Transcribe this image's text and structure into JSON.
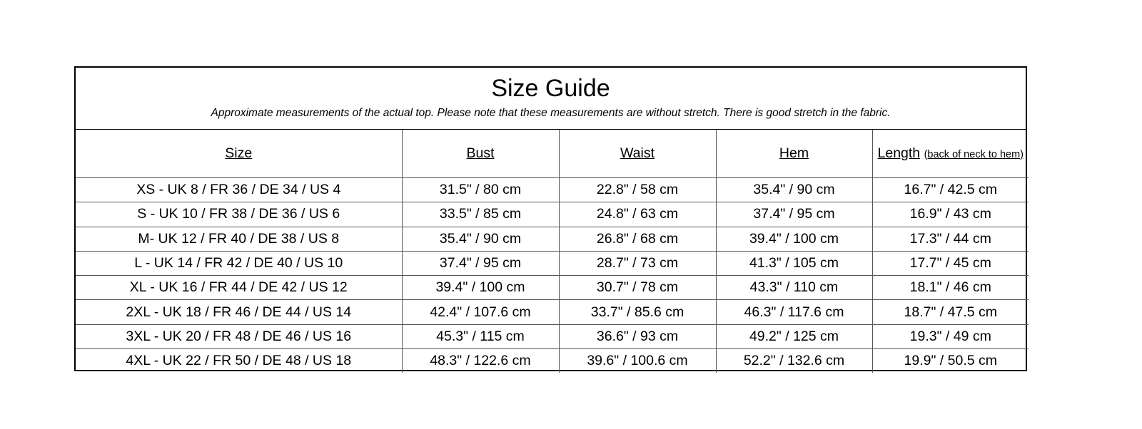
{
  "title": "Size Guide",
  "subtitle": "Approximate measurements of the actual top. Please note that these measurements are without stretch. There is good stretch in the fabric.",
  "columns": {
    "size": "Size",
    "bust": "Bust",
    "waist": "Waist",
    "hem": "Hem",
    "length": "Length",
    "length_note": "(back of neck to hem)"
  },
  "rows": [
    {
      "size": "XS - UK 8 / FR 36 / DE 34 / US 4",
      "bust": "31.5\" / 80 cm",
      "waist": "22.8\" / 58 cm",
      "hem": "35.4\" / 90 cm",
      "length": "16.7\" / 42.5 cm"
    },
    {
      "size": "S - UK 10 / FR 38 / DE 36 / US 6",
      "bust": "33.5\" / 85 cm",
      "waist": "24.8\" / 63 cm",
      "hem": "37.4\" / 95 cm",
      "length": "16.9\" / 43 cm"
    },
    {
      "size": "M- UK 12 / FR 40 / DE 38 / US 8",
      "bust": "35.4\" / 90 cm",
      "waist": "26.8\" / 68 cm",
      "hem": "39.4\" / 100 cm",
      "length": "17.3\" / 44 cm"
    },
    {
      "size": "L - UK 14 / FR 42 / DE 40 / US 10",
      "bust": "37.4\" / 95 cm",
      "waist": "28.7\" / 73 cm",
      "hem": "41.3\" / 105 cm",
      "length": "17.7\" / 45 cm"
    },
    {
      "size": "XL - UK 16 / FR 44 / DE 42 / US 12",
      "bust": "39.4\" / 100 cm",
      "waist": "30.7\" / 78 cm",
      "hem": "43.3\" / 110 cm",
      "length": "18.1\" / 46 cm"
    },
    {
      "size": "2XL - UK 18 / FR 46 / DE 44 / US 14",
      "bust": "42.4\" / 107.6 cm",
      "waist": "33.7\" / 85.6 cm",
      "hem": "46.3\" / 117.6 cm",
      "length": "18.7\" / 47.5 cm"
    },
    {
      "size": "3XL - UK 20 / FR 48 / DE 46 / US 16",
      "bust": "45.3\" / 115 cm",
      "waist": "36.6\" / 93 cm",
      "hem": "49.2\" / 125 cm",
      "length": "19.3\" / 49 cm"
    },
    {
      "size": "4XL - UK 22 / FR 50 / DE 48 / US 18",
      "bust": "48.3\" / 122.6 cm",
      "waist": "39.6\" / 100.6 cm",
      "hem": "52.2\" / 132.6 cm",
      "length": "19.9\" / 50.5 cm"
    }
  ]
}
